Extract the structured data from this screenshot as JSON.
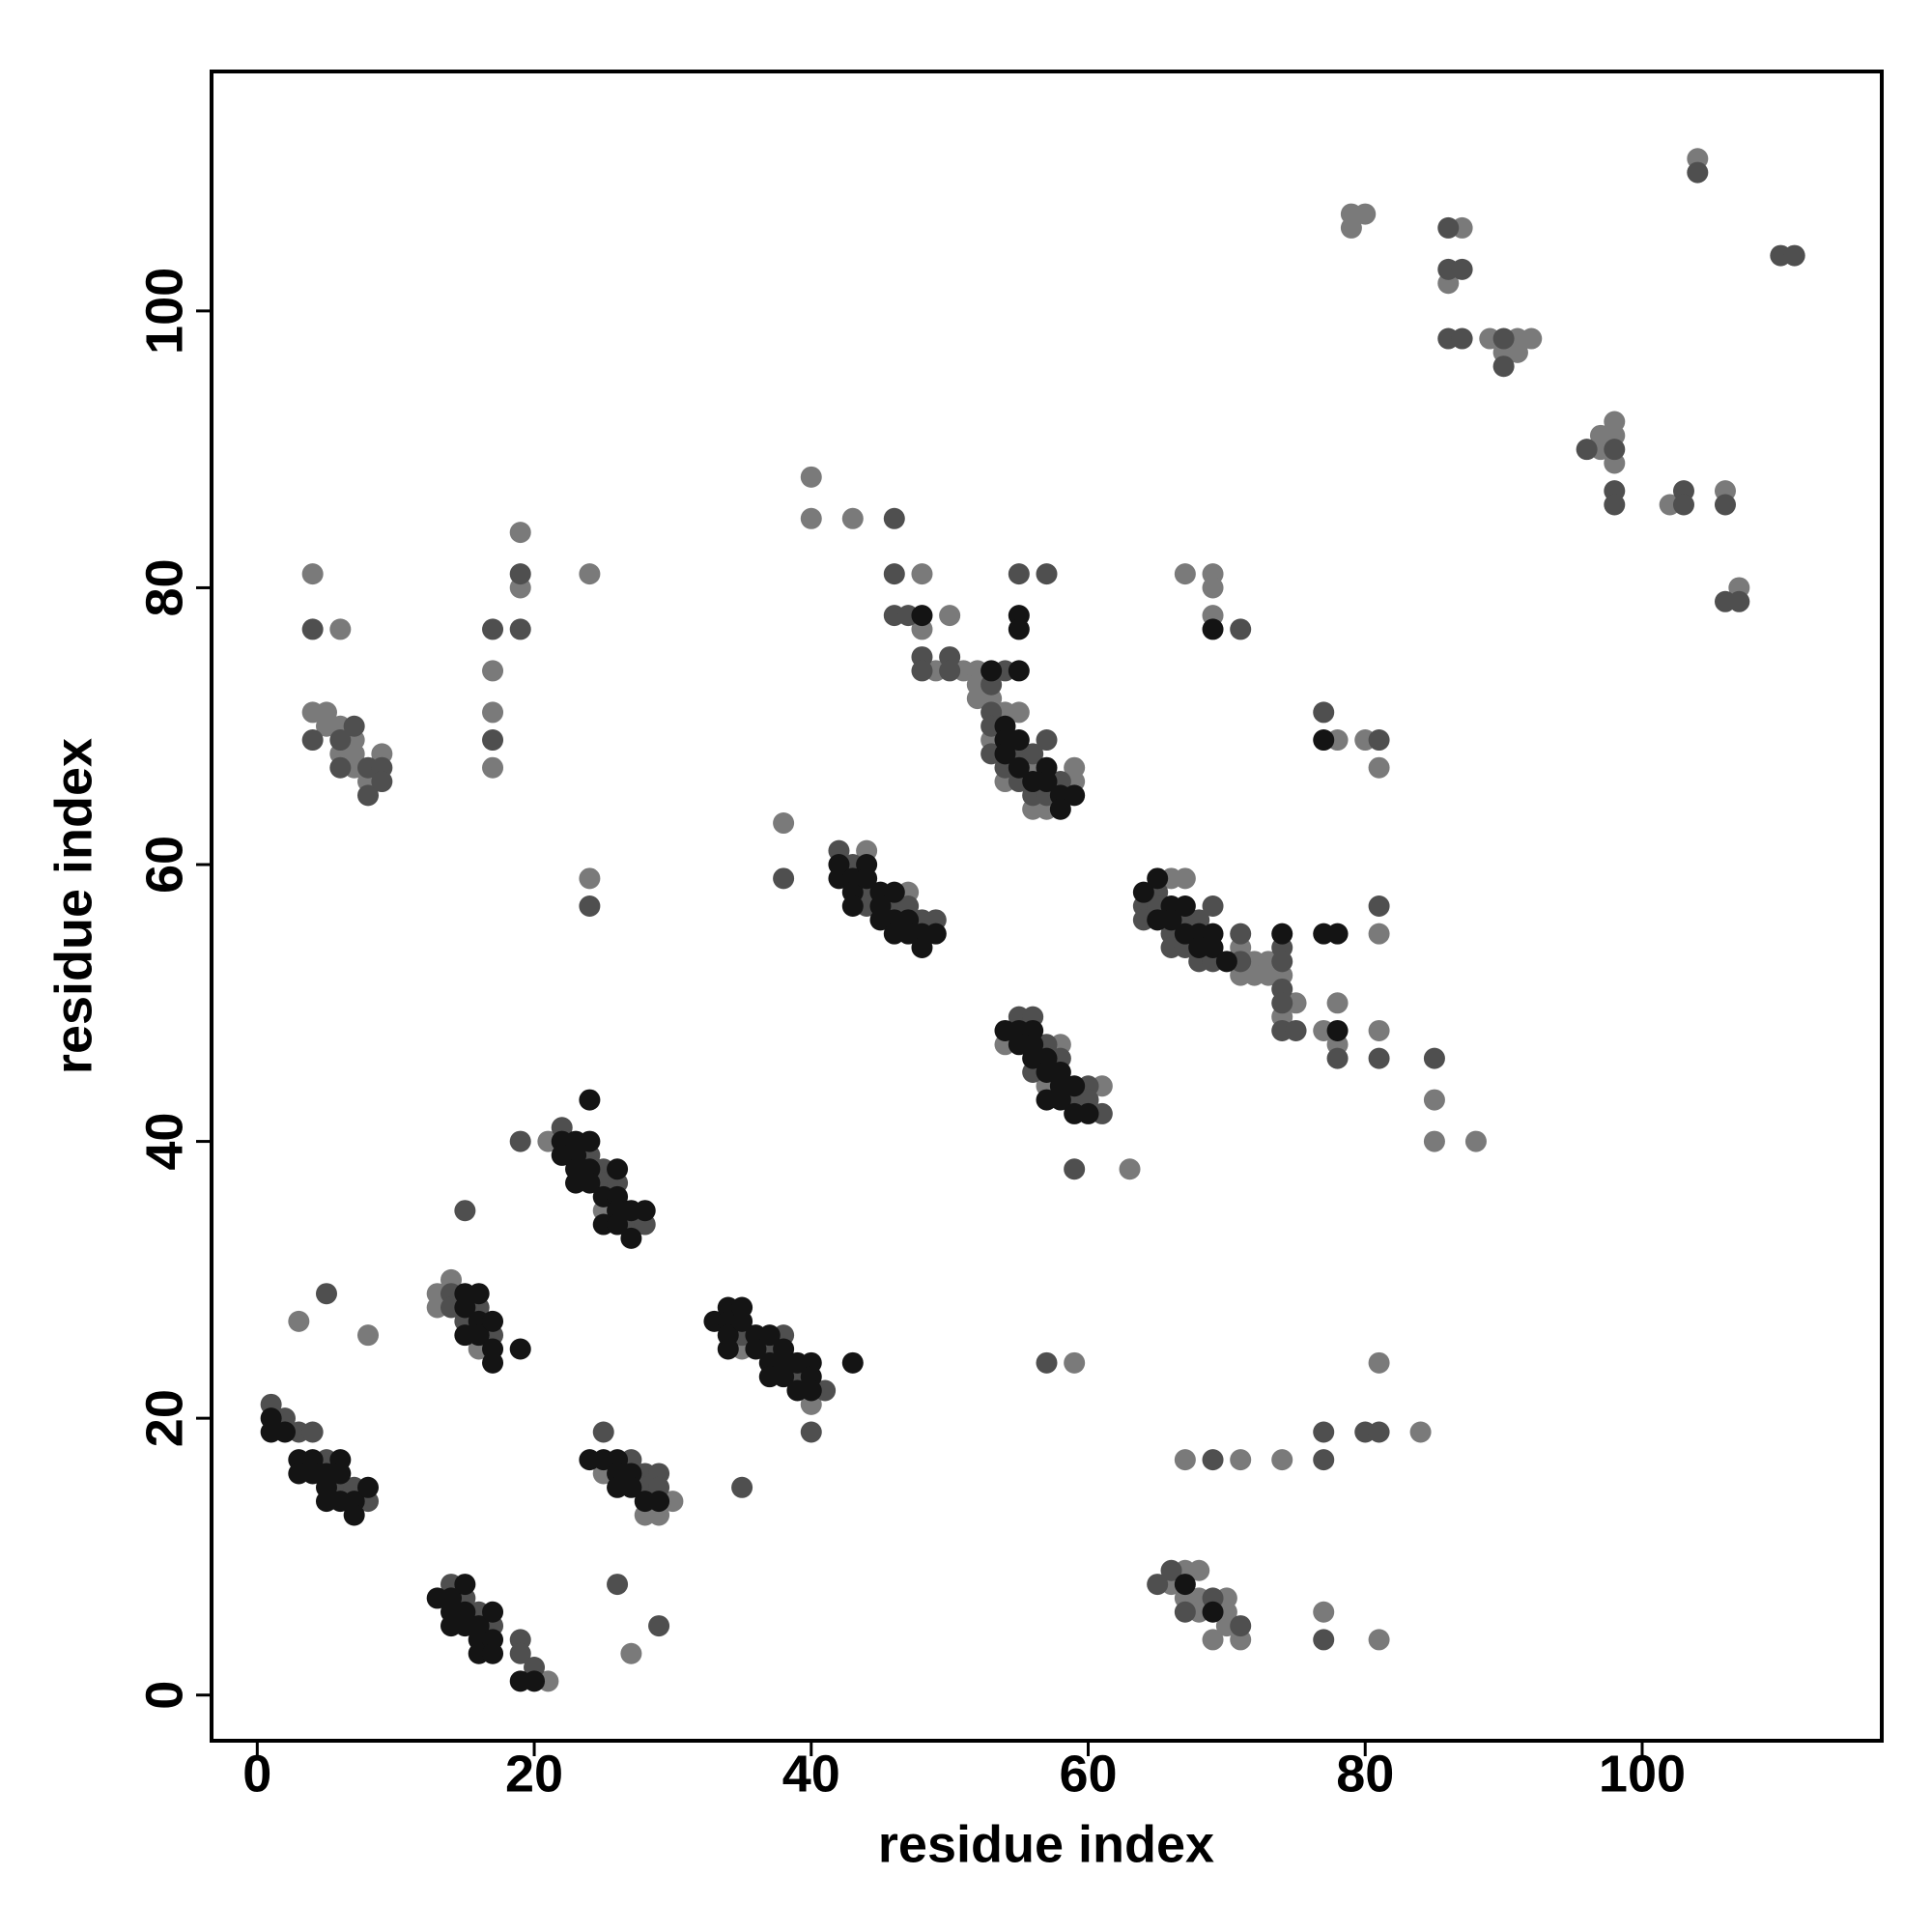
{
  "chart_data": {
    "type": "scatter",
    "xlabel": "residue index",
    "ylabel": "residue index",
    "xlim": [
      -3.3,
      117.3
    ],
    "ylim": [
      -3.3,
      117.3
    ],
    "xticks": [
      0,
      20,
      40,
      60,
      80,
      100
    ],
    "yticks": [
      0,
      20,
      40,
      60,
      80,
      100
    ],
    "grid": false,
    "series": [
      {
        "color": "#7a7a7a",
        "x": [
          8,
          3,
          21,
          13,
          13,
          14,
          16,
          21,
          25,
          25,
          28,
          29,
          30,
          27,
          35,
          40,
          38,
          44,
          47,
          24,
          4,
          4,
          5,
          5,
          6,
          6,
          6,
          7,
          7,
          7,
          8,
          9,
          17,
          17,
          17,
          19,
          19,
          24,
          40,
          40,
          43,
          48,
          48,
          49,
          50,
          51,
          52,
          52,
          52,
          53,
          53,
          54,
          54,
          55,
          56,
          56,
          57,
          59,
          59,
          54,
          57,
          58,
          61,
          63,
          66,
          67,
          71,
          71,
          72,
          72,
          73,
          73,
          74,
          74,
          75,
          77,
          78,
          78,
          81,
          81,
          85,
          85,
          88,
          67,
          69,
          69,
          69,
          78,
          80,
          81,
          59,
          81,
          67,
          71,
          74,
          84,
          66,
          67,
          67,
          68,
          68,
          68,
          69,
          70,
          70,
          70,
          71,
          77,
          81,
          79,
          79,
          80,
          86,
          87,
          89,
          90,
          91,
          91,
          92,
          97,
          97,
          98,
          98,
          98,
          102,
          104,
          106,
          107
        ],
        "y": [
          26,
          27,
          1,
          29,
          28,
          30,
          25,
          40,
          35,
          16,
          13,
          13,
          14,
          3,
          25,
          21,
          63,
          61,
          58,
          59,
          81,
          71,
          71,
          70,
          77,
          70,
          68,
          69,
          68,
          67,
          66,
          68,
          74,
          71,
          67,
          84,
          80,
          81,
          88,
          85,
          85,
          81,
          77,
          74,
          78,
          74,
          74,
          73,
          72,
          72,
          69,
          71,
          66,
          71,
          67,
          64,
          64,
          67,
          66,
          47,
          44,
          47,
          44,
          38,
          59,
          59,
          54,
          52,
          53,
          52,
          53,
          52,
          52,
          49,
          50,
          48,
          50,
          47,
          55,
          48,
          43,
          40,
          40,
          81,
          81,
          80,
          78,
          69,
          69,
          67,
          24,
          24,
          17,
          17,
          17,
          19,
          8,
          9,
          7,
          9,
          7,
          6,
          4,
          7,
          6,
          5,
          4,
          6,
          4,
          107,
          106,
          107,
          102,
          106,
          98,
          97,
          98,
          97,
          98,
          91,
          90,
          92,
          91,
          89,
          86,
          111,
          87,
          80
        ]
      },
      {
        "color": "#4f4f4f",
        "x": [
          1,
          2,
          3,
          4,
          5,
          6,
          7,
          8,
          5,
          14,
          15,
          16,
          17,
          19,
          19,
          20,
          14,
          14,
          15,
          16,
          17,
          15,
          19,
          22,
          24,
          25,
          25,
          26,
          27,
          28,
          25,
          27,
          28,
          28,
          29,
          29,
          26,
          29,
          35,
          37,
          38,
          39,
          41,
          40,
          35,
          38,
          42,
          43,
          44,
          44,
          46,
          47,
          48,
          49,
          24,
          4,
          4,
          6,
          6,
          7,
          8,
          8,
          9,
          9,
          17,
          17,
          19,
          19,
          46,
          46,
          46,
          47,
          48,
          48,
          50,
          50,
          53,
          53,
          53,
          53,
          54,
          54,
          55,
          55,
          55,
          56,
          56,
          57,
          57,
          57,
          58,
          55,
          56,
          56,
          57,
          58,
          59,
          60,
          60,
          61,
          59,
          64,
          64,
          65,
          65,
          66,
          66,
          67,
          67,
          68,
          68,
          69,
          69,
          71,
          71,
          74,
          74,
          74,
          74,
          74,
          75,
          78,
          81,
          81,
          85,
          71,
          77,
          81,
          57,
          69,
          77,
          77,
          80,
          81,
          65,
          66,
          67,
          69,
          71,
          77,
          86,
          86,
          86,
          87,
          87,
          90,
          90,
          96,
          98,
          98,
          98,
          103,
          103,
          104,
          106,
          106,
          107,
          110,
          111
        ],
        "y": [
          21,
          20,
          19,
          19,
          17,
          15,
          15,
          14,
          29,
          8,
          7,
          6,
          5,
          4,
          3,
          2,
          29,
          28,
          27,
          28,
          26,
          35,
          40,
          41,
          39,
          38,
          37,
          37,
          34,
          34,
          19,
          17,
          16,
          15,
          16,
          15,
          8,
          5,
          26,
          25,
          26,
          23,
          22,
          19,
          15,
          59,
          61,
          60,
          58,
          57,
          57,
          57,
          56,
          56,
          57,
          77,
          69,
          69,
          67,
          70,
          67,
          65,
          67,
          66,
          77,
          69,
          81,
          77,
          85,
          81,
          78,
          78,
          75,
          74,
          75,
          74,
          73,
          71,
          70,
          68,
          74,
          67,
          81,
          68,
          66,
          68,
          65,
          81,
          69,
          65,
          66,
          49,
          49,
          45,
          47,
          46,
          43,
          44,
          43,
          42,
          38,
          57,
          56,
          58,
          57,
          55,
          54,
          56,
          54,
          56,
          53,
          57,
          53,
          55,
          53,
          54,
          53,
          51,
          50,
          48,
          48,
          46,
          57,
          46,
          46,
          77,
          71,
          69,
          24,
          17,
          19,
          17,
          19,
          19,
          8,
          9,
          6,
          7,
          5,
          4,
          106,
          103,
          98,
          103,
          98,
          98,
          96,
          90,
          90,
          87,
          86,
          87,
          86,
          110,
          86,
          79,
          79,
          104,
          104
        ]
      },
      {
        "color": "#141414",
        "x": [
          1,
          1,
          2,
          3,
          3,
          4,
          4,
          5,
          5,
          5,
          6,
          6,
          6,
          7,
          7,
          8,
          13,
          14,
          14,
          14,
          15,
          15,
          15,
          16,
          16,
          16,
          17,
          17,
          17,
          19,
          20,
          15,
          15,
          15,
          16,
          16,
          16,
          17,
          17,
          17,
          19,
          22,
          22,
          23,
          23,
          23,
          23,
          24,
          24,
          24,
          24,
          25,
          25,
          26,
          26,
          26,
          26,
          27,
          27,
          28,
          24,
          25,
          26,
          26,
          26,
          27,
          27,
          28,
          29,
          33,
          34,
          34,
          34,
          34,
          35,
          35,
          36,
          36,
          37,
          37,
          37,
          38,
          38,
          38,
          39,
          39,
          40,
          40,
          40,
          43,
          42,
          42,
          43,
          43,
          43,
          44,
          44,
          45,
          45,
          45,
          46,
          46,
          46,
          47,
          47,
          48,
          48,
          49,
          48,
          53,
          54,
          54,
          54,
          55,
          55,
          55,
          55,
          55,
          56,
          57,
          57,
          58,
          58,
          59,
          54,
          55,
          55,
          56,
          56,
          56,
          57,
          57,
          57,
          58,
          58,
          58,
          59,
          59,
          60,
          64,
          65,
          65,
          66,
          66,
          67,
          67,
          68,
          68,
          69,
          69,
          70,
          74,
          77,
          78,
          78,
          69,
          77,
          67,
          69
        ],
        "y": [
          20,
          19,
          19,
          17,
          16,
          17,
          16,
          16,
          15,
          14,
          17,
          16,
          14,
          14,
          13,
          15,
          7,
          7,
          6,
          5,
          8,
          5,
          6,
          5,
          4,
          3,
          6,
          4,
          3,
          1,
          1,
          29,
          28,
          26,
          29,
          27,
          26,
          27,
          25,
          24,
          25,
          40,
          39,
          40,
          39,
          38,
          37,
          43,
          40,
          38,
          37,
          36,
          34,
          38,
          36,
          35,
          34,
          35,
          33,
          35,
          17,
          17,
          17,
          16,
          15,
          16,
          15,
          14,
          14,
          27,
          28,
          27,
          26,
          25,
          28,
          27,
          26,
          25,
          26,
          24,
          23,
          25,
          24,
          23,
          24,
          22,
          24,
          23,
          22,
          24,
          60,
          59,
          59,
          58,
          57,
          60,
          59,
          58,
          57,
          56,
          58,
          56,
          55,
          56,
          55,
          55,
          54,
          55,
          78,
          74,
          70,
          69,
          68,
          78,
          77,
          74,
          69,
          67,
          66,
          67,
          66,
          65,
          64,
          65,
          48,
          48,
          47,
          48,
          47,
          46,
          46,
          45,
          43,
          45,
          44,
          43,
          44,
          42,
          42,
          58,
          59,
          56,
          57,
          56,
          57,
          55,
          55,
          54,
          55,
          54,
          53,
          55,
          55,
          55,
          48,
          77,
          69,
          8,
          6
        ]
      }
    ]
  }
}
